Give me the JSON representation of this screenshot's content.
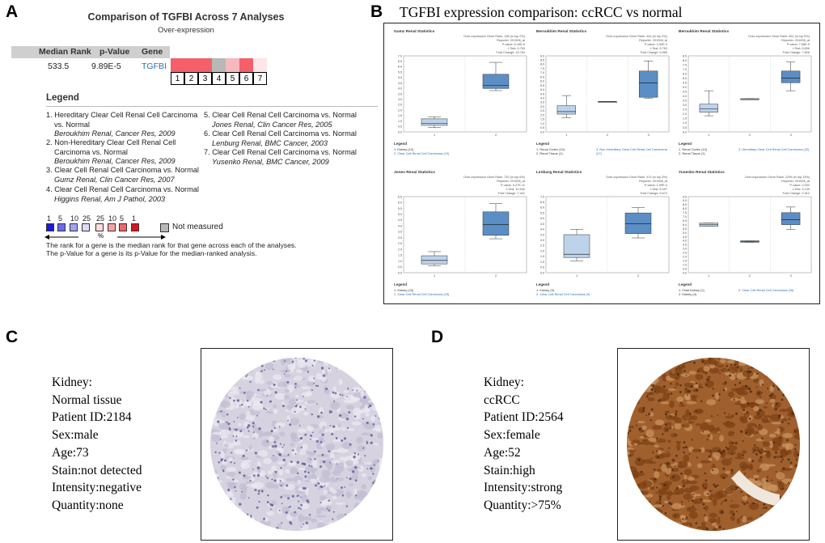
{
  "panel_labels": {
    "a": "A",
    "b": "B",
    "c": "C",
    "d": "D"
  },
  "panelA": {
    "title": "Comparison of TGFBI Across 7 Analyses",
    "subtitle": "Over-expression",
    "headers": {
      "median_rank": "Median Rank",
      "p_value": "p-Value",
      "gene": "Gene"
    },
    "row": {
      "median_rank": "533.5",
      "p_value": "9.89E-5",
      "gene": "TGFBI"
    },
    "cells": [
      {
        "n": "1",
        "color": "#f4606a"
      },
      {
        "n": "2",
        "color": "#f4606a"
      },
      {
        "n": "3",
        "color": "#f4606a"
      },
      {
        "n": "4",
        "color": "#b8b8b8"
      },
      {
        "n": "5",
        "color": "#f7b9bd"
      },
      {
        "n": "6",
        "color": "#f4606a"
      },
      {
        "n": "7",
        "color": "#fde6e7"
      }
    ],
    "legend_title": "Legend",
    "legend": [
      {
        "lines": [
          "1. Hereditary Clear Cell Renal Cell Carcinoma",
          "vs. Normal"
        ],
        "cite": "Beroukhim Renal, Cancer Res, 2009"
      },
      {
        "lines": [
          "2. Non-Hereditary Clear Cell Renal Cell",
          "Carcinoma vs. Normal"
        ],
        "cite": "Beroukhim Renal, Cancer Res, 2009"
      },
      {
        "lines": [
          "3. Clear Cell Renal Cell Carcinoma vs. Normal"
        ],
        "cite": "Gumz Renal, Clin Cancer Res, 2007"
      },
      {
        "lines": [
          "4. Clear Cell Renal Cell Carcinoma vs. Normal"
        ],
        "cite": "Higgins Renal, Am J Pathol, 2003"
      },
      {
        "lines": [
          "5. Clear Cell Renal Cell Carcinoma vs. Normal"
        ],
        "cite": "Jones Renal, Clin Cancer Res, 2005"
      },
      {
        "lines": [
          "6. Clear Cell Renal Cell Carcinoma vs. Normal"
        ],
        "cite": "Lenburg Renal, BMC Cancer, 2003"
      },
      {
        "lines": [
          "7. Clear Cell Renal Cell Carcinoma vs. Normal"
        ],
        "cite": "Yusenko Renal, BMC Cancer, 2009"
      }
    ],
    "scale_labels": [
      "1",
      "5",
      "10",
      "25",
      "25",
      "10",
      "5",
      "1"
    ],
    "scale_colors": [
      "#1a1adb",
      "#6b6bf0",
      "#a3a3f5",
      "#dcdcfa",
      "#fbdcdc",
      "#f6a3a6",
      "#f0646a",
      "#d8141c"
    ],
    "scale_percent": "%",
    "not_measured": "Not measured",
    "not_measured_color": "#b8b8b8",
    "note_lines": [
      "The rank for a gene is the median rank for that gene across each of the analyses.",
      "The p-Value for a gene is its p-Value for the median-ranked analysis."
    ]
  },
  "panelB": {
    "title": "TGFBI expression comparison: ccRCC vs normal",
    "legend_header": "Legend",
    "plots": [
      {
        "title": "Gumz Renal Statistics",
        "info": [
          "Over-expression Gene Rank: 198 (in top 2%)",
          "Reporter: 201506_at",
          "P-value: 6.49E-6",
          "t-Test: 6.763",
          "Fold Change: 15.764"
        ],
        "ymax": 7.0,
        "yticks": [
          "0.0",
          "0.5",
          "1.0",
          "1.5",
          "2.0",
          "2.5",
          "3.0",
          "3.5",
          "4.0",
          "4.5",
          "5.0",
          "5.5",
          "6.0",
          "6.5",
          "7.0"
        ],
        "groups": [
          {
            "x": "1",
            "min": 0.4,
            "q1": 0.6,
            "med": 0.8,
            "q3": 1.2,
            "max": 1.4,
            "color": "#bcd3ea"
          },
          {
            "x": "2",
            "min": 3.8,
            "q1": 4.0,
            "med": 4.3,
            "q3": 5.3,
            "max": 6.4,
            "color": "#5b8ec4"
          }
        ],
        "legend": [
          "1. Kidney (10)",
          "2. Clear Cell Renal Cell Carcinoma (10)"
        ]
      },
      {
        "title": "Beroukhim Renal Statistics",
        "info": [
          "Over-expression Gene Rank: 444 (in top 4%)",
          "Reporter: 201506_at",
          "P-value: 4.00E-4",
          "t-Test: 6.763",
          "Fold Change: 6.565"
        ],
        "ymax": 9.0,
        "yticks": [
          "0.0",
          "0.5",
          "1.0",
          "1.5",
          "2.0",
          "2.5",
          "3.0",
          "3.5",
          "4.0",
          "4.5",
          "5.0",
          "5.5",
          "6.0",
          "6.5",
          "7.0",
          "7.5",
          "8.0",
          "8.5",
          "9.0"
        ],
        "groups": [
          {
            "x": "1",
            "min": 1.7,
            "q1": 2.1,
            "med": 2.4,
            "q3": 3.1,
            "max": 4.3,
            "color": "#bcd3ea"
          },
          {
            "x": "2",
            "min": 3.6,
            "q1": 3.6,
            "med": 3.6,
            "q3": 3.6,
            "max": 3.6,
            "color": "#bcd3ea"
          },
          {
            "x": "3",
            "min": 4.0,
            "q1": 4.1,
            "med": 5.8,
            "q3": 7.2,
            "max": 8.4,
            "color": "#5b8ec4"
          }
        ],
        "legend": [
          "1. Renal Cortex (10)",
          "2. Renal Tissue (1)",
          "3. Non-Hereditary Clear Cell Renal Cell Carcinoma (27)"
        ]
      },
      {
        "title": "Beroukhim Renal Statistics",
        "info": [
          "Over-expression Gene Rank: 561 (in top 5%)",
          "Reporter: 201506_at",
          "P-value: 7.58E-9",
          "t-Test: 8.606",
          "Fold Change: 7.826"
        ],
        "ymax": 8.5,
        "yticks": [
          "0.0",
          "0.5",
          "1.0",
          "1.5",
          "2.0",
          "2.5",
          "3.0",
          "3.5",
          "4.0",
          "4.5",
          "5.0",
          "5.5",
          "6.0",
          "6.5",
          "7.0",
          "7.5",
          "8.0",
          "8.5"
        ],
        "groups": [
          {
            "x": "1",
            "min": 1.8,
            "q1": 2.2,
            "med": 2.6,
            "q3": 3.1,
            "max": 4.6,
            "color": "#bcd3ea"
          },
          {
            "x": "2",
            "min": 3.7,
            "q1": 3.7,
            "med": 3.7,
            "q3": 3.7,
            "max": 3.7,
            "color": "#bcd3ea"
          },
          {
            "x": "3",
            "min": 4.6,
            "q1": 5.5,
            "med": 6.0,
            "q3": 6.8,
            "max": 7.8,
            "color": "#5b8ec4"
          }
        ],
        "legend": [
          "1. Renal Cortex (10)",
          "2. Renal Tissue (1)",
          "3. Hereditary Clear Cell Renal Cell Carcinoma (32)"
        ]
      },
      {
        "title": "Jones Renal Statistics",
        "info": [
          "Over-expression Gene Rank: 732 (in top 6%)",
          "Reporter: 201506_at",
          "P-value: 6.27E-11",
          "t-Test: 10.532",
          "Fold Change: 7.421"
        ],
        "ymax": 6.5,
        "yticks": [
          "0.0",
          "0.5",
          "1.0",
          "1.5",
          "2.0",
          "2.5",
          "3.0",
          "3.5",
          "4.0",
          "4.5",
          "5.0",
          "5.5",
          "6.0",
          "6.5"
        ],
        "groups": [
          {
            "x": "1",
            "min": 0.6,
            "q1": 0.75,
            "med": 1.05,
            "q3": 1.45,
            "max": 1.8,
            "color": "#bcd3ea"
          },
          {
            "x": "2",
            "min": 2.9,
            "q1": 3.2,
            "med": 4.1,
            "q3": 5.2,
            "max": 5.9,
            "color": "#5b8ec4"
          }
        ],
        "legend": [
          "1. Kidney (23)",
          "2. Clear Cell Renal Cell Carcinoma (23)"
        ]
      },
      {
        "title": "Lenburg Renal Statistics",
        "info": [
          "Over-expression Gene Rank: 474 (in top 3%)",
          "Reporter: 201506_at",
          "P-value: 1.99E-4",
          "t-Test: 6.497",
          "Fold Change: 5.674"
        ],
        "ymax": 7.0,
        "yticks": [
          "0.0",
          "0.5",
          "1.0",
          "1.5",
          "2.0",
          "2.5",
          "3.0",
          "3.5",
          "4.0",
          "4.5",
          "5.0",
          "5.5",
          "6.0",
          "6.5",
          "7.0"
        ],
        "groups": [
          {
            "x": "1",
            "min": 1.1,
            "q1": 1.4,
            "med": 1.7,
            "q3": 3.5,
            "max": 4.0,
            "color": "#bcd3ea"
          },
          {
            "x": "2",
            "min": 3.2,
            "q1": 3.6,
            "med": 4.5,
            "q3": 5.5,
            "max": 6.0,
            "color": "#5b8ec4"
          }
        ],
        "legend": [
          "1. Kidney (9)",
          "2. Clear Cell Renal Cell Carcinoma (9)"
        ]
      },
      {
        "title": "Yusenko Renal Statistics",
        "info": [
          "Over-expression Gene Rank: 2295 (in top 13%)",
          "Reporter: 201506_at",
          "P-value: 0.002",
          "t-Test: 4.139",
          "Fold Change: 4.912"
        ],
        "ymax": 9.5,
        "yticks": [
          "0.0",
          "0.5",
          "1.0",
          "1.5",
          "2.0",
          "2.5",
          "3.0",
          "3.5",
          "4.0",
          "4.5",
          "5.0",
          "5.5",
          "6.0",
          "6.5",
          "7.0",
          "7.5",
          "8.0",
          "8.5",
          "9.0",
          "9.5"
        ],
        "groups": [
          {
            "x": "1",
            "min": 5.8,
            "q1": 5.8,
            "med": 6.0,
            "q3": 6.2,
            "max": 6.2,
            "color": "#bcd3ea"
          },
          {
            "x": "2",
            "min": 3.8,
            "q1": 3.8,
            "med": 3.9,
            "q3": 4.0,
            "max": 4.0,
            "color": "#bcd3ea"
          },
          {
            "x": "3",
            "min": 5.4,
            "q1": 6.0,
            "med": 6.6,
            "q3": 7.5,
            "max": 8.2,
            "color": "#5b8ec4"
          }
        ],
        "legend": [
          "1. Fetal Kidney (2)",
          "2. Kidney (3)",
          "3. Clear Cell Renal Cell Carcinoma (26)"
        ]
      }
    ]
  },
  "panelC": {
    "lines": [
      "Kidney:",
      "Normal tissue",
      "Patient ID:2184",
      "Sex:male",
      "Age:73",
      "Stain:not detected",
      "Intensity:negative",
      "Quantity:none"
    ],
    "tissue_color": "#d6d2e0",
    "nuclei_color": "#5e5a99"
  },
  "panelD": {
    "lines": [
      "Kidney:",
      "ccRCC",
      "Patient ID:2564",
      "Sex:female",
      "Age:52",
      "Stain:high",
      "Intensity:strong",
      "Quantity:>75%"
    ],
    "tissue_color": "#a0602e",
    "nuclei_color": "#4a2a15"
  }
}
